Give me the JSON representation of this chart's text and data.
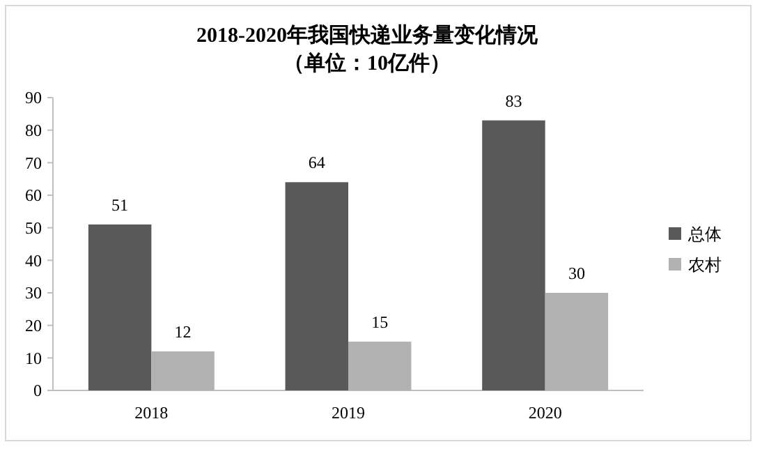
{
  "chart_data": {
    "type": "bar",
    "title": "2018-2020年我国快递业务量变化情况",
    "subtitle": "（单位：10亿件）",
    "categories": [
      "2018",
      "2019",
      "2020"
    ],
    "series": [
      {
        "name": "总体",
        "color": "#595959",
        "values": [
          51,
          64,
          83
        ]
      },
      {
        "name": "农村",
        "color": "#b2b2b2",
        "values": [
          12,
          15,
          30
        ]
      }
    ],
    "ylim": [
      0,
      90
    ],
    "yticks": [
      0,
      10,
      20,
      30,
      40,
      50,
      60,
      70,
      80,
      90
    ],
    "data_labels": true,
    "legend": "right"
  }
}
